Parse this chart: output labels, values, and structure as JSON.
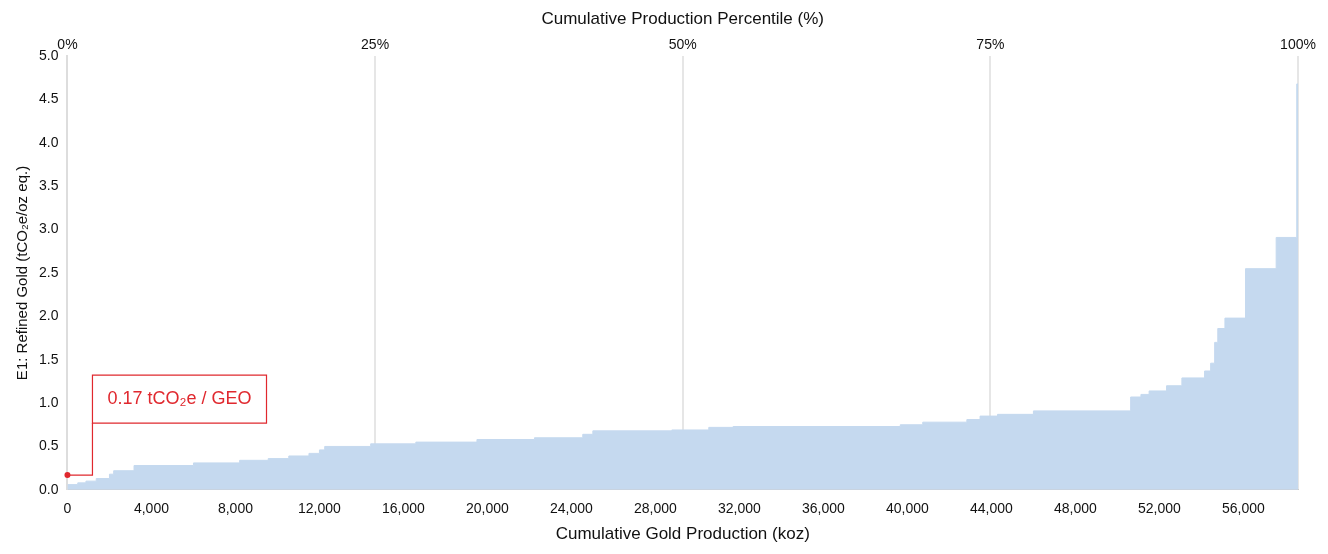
{
  "chart_data": {
    "type": "area",
    "xlabel": "Cumulative Gold Production (koz)",
    "ylabel": "E1: Refined Gold (tCO₂e/oz eq.)",
    "x2label": "Cumulative Production Percentile (%)",
    "x": [
      0,
      490,
      490,
      880,
      880,
      1370,
      1370,
      2000,
      2000,
      2200,
      2200,
      3170,
      3170,
      6000,
      6000,
      8200,
      8200,
      9560,
      9560,
      10540,
      10540,
      11500,
      11500,
      12000,
      12000,
      12250,
      12250,
      14440,
      14440,
      16590,
      16590,
      19500,
      19500,
      22240,
      22240,
      24540,
      24540,
      25020,
      25020,
      28780,
      28780,
      30540,
      30540,
      31700,
      31700,
      39660,
      39660,
      40730,
      40730,
      42830,
      42830,
      43460,
      43460,
      44290,
      44290,
      46000,
      46000,
      50630,
      50630,
      51120,
      51120,
      51510,
      51510,
      52340,
      52340,
      53070,
      53070,
      54150,
      54150,
      54440,
      54440,
      54630,
      54630,
      54780,
      54780,
      55120,
      55120,
      56100,
      56100,
      57560,
      57560,
      58540,
      58540,
      58600
    ],
    "series": [
      {
        "color": "#c5d9ef",
        "values": [
          0.06,
          0.06,
          0.08,
          0.08,
          0.1,
          0.1,
          0.13,
          0.13,
          0.18,
          0.18,
          0.22,
          0.22,
          0.28,
          0.28,
          0.31,
          0.31,
          0.34,
          0.34,
          0.36,
          0.36,
          0.39,
          0.39,
          0.42,
          0.42,
          0.46,
          0.46,
          0.5,
          0.5,
          0.53,
          0.53,
          0.55,
          0.55,
          0.58,
          0.58,
          0.6,
          0.6,
          0.64,
          0.64,
          0.68,
          0.68,
          0.69,
          0.69,
          0.72,
          0.72,
          0.73,
          0.73,
          0.75,
          0.75,
          0.78,
          0.78,
          0.81,
          0.81,
          0.85,
          0.85,
          0.87,
          0.87,
          0.91,
          0.91,
          1.07,
          1.07,
          1.1,
          1.1,
          1.14,
          1.14,
          1.2,
          1.2,
          1.29,
          1.29,
          1.37,
          1.37,
          1.46,
          1.46,
          1.7,
          1.7,
          1.86,
          1.86,
          1.98,
          1.98,
          2.55,
          2.55,
          2.91,
          2.91,
          4.68,
          4.68
        ]
      }
    ],
    "xlim": [
      0,
      58600
    ],
    "xticks": [
      0,
      {
        "value": 4000,
        "label": "4,000"
      },
      {
        "value": 8000,
        "label": "8,000"
      },
      {
        "value": 12000,
        "label": "12,000"
      },
      {
        "value": 16000,
        "label": "16,000"
      },
      {
        "value": 20000,
        "label": "20,000"
      },
      {
        "value": 24000,
        "label": "24,000"
      },
      {
        "value": 28000,
        "label": "28,000"
      },
      {
        "value": 32000,
        "label": "32,000"
      },
      {
        "value": 36000,
        "label": "36,000"
      },
      {
        "value": 40000,
        "label": "40,000"
      },
      {
        "value": 44000,
        "label": "44,000"
      },
      {
        "value": 48000,
        "label": "48,000"
      },
      {
        "value": 52000,
        "label": "52,000"
      },
      {
        "value": 56000,
        "label": "56,000"
      }
    ],
    "x2lim": [
      0,
      100
    ],
    "x2ticks": [
      {
        "value": 0,
        "label": "0%"
      },
      {
        "value": 25,
        "label": "25%"
      },
      {
        "value": 50,
        "label": "50%"
      },
      {
        "value": 75,
        "label": "75%"
      },
      {
        "value": 100,
        "label": "100%"
      }
    ],
    "ylim": [
      0,
      5
    ],
    "yticks": [
      {
        "value": 0,
        "label": "0.0"
      },
      {
        "value": 0.5,
        "label": "0.5"
      },
      {
        "value": 1,
        "label": "1.0"
      },
      {
        "value": 1.5,
        "label": "1.5"
      },
      {
        "value": 2,
        "label": "2.0"
      },
      {
        "value": 2.5,
        "label": "2.5"
      },
      {
        "value": 3,
        "label": "3.0"
      },
      {
        "value": 3.5,
        "label": "3.5"
      },
      {
        "value": 4,
        "label": "4.0"
      },
      {
        "value": 4.5,
        "label": "4.5"
      },
      {
        "value": 5,
        "label": "5.0"
      }
    ],
    "grid": "x",
    "annotations": [
      {
        "text": "0.17 tCO₂e / GEO",
        "x": 0,
        "y": 0.17
      }
    ]
  }
}
